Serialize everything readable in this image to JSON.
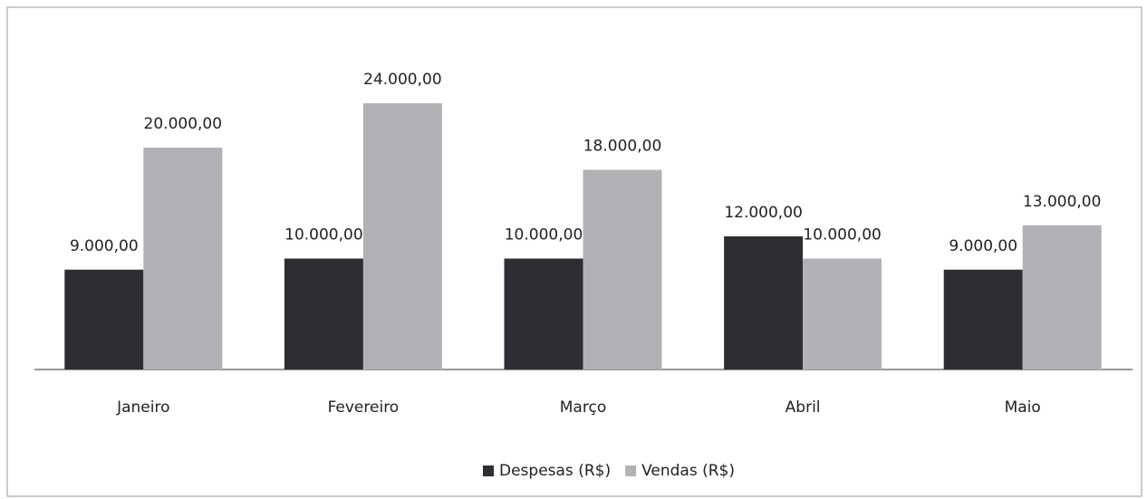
{
  "chart_data": {
    "type": "bar",
    "categories": [
      "Janeiro",
      "Fevereiro",
      "Março",
      "Abril",
      "Maio"
    ],
    "series": [
      {
        "name": "Despesas (R$)",
        "color": "#2f2d33",
        "values": [
          9000,
          10000,
          10000,
          12000,
          9000
        ],
        "value_labels": [
          "9.000,00",
          "10.000,00",
          "10.000,00",
          "12.000,00",
          "9.000,00"
        ]
      },
      {
        "name": "Vendas (R$)",
        "color": "#b3b1b6",
        "values": [
          20000,
          24000,
          18000,
          10000,
          13000
        ],
        "value_labels": [
          "20.000,00",
          "24.000,00",
          "18.000,00",
          "10.000,00",
          "13.000,00"
        ]
      }
    ],
    "legend": "bottom"
  }
}
